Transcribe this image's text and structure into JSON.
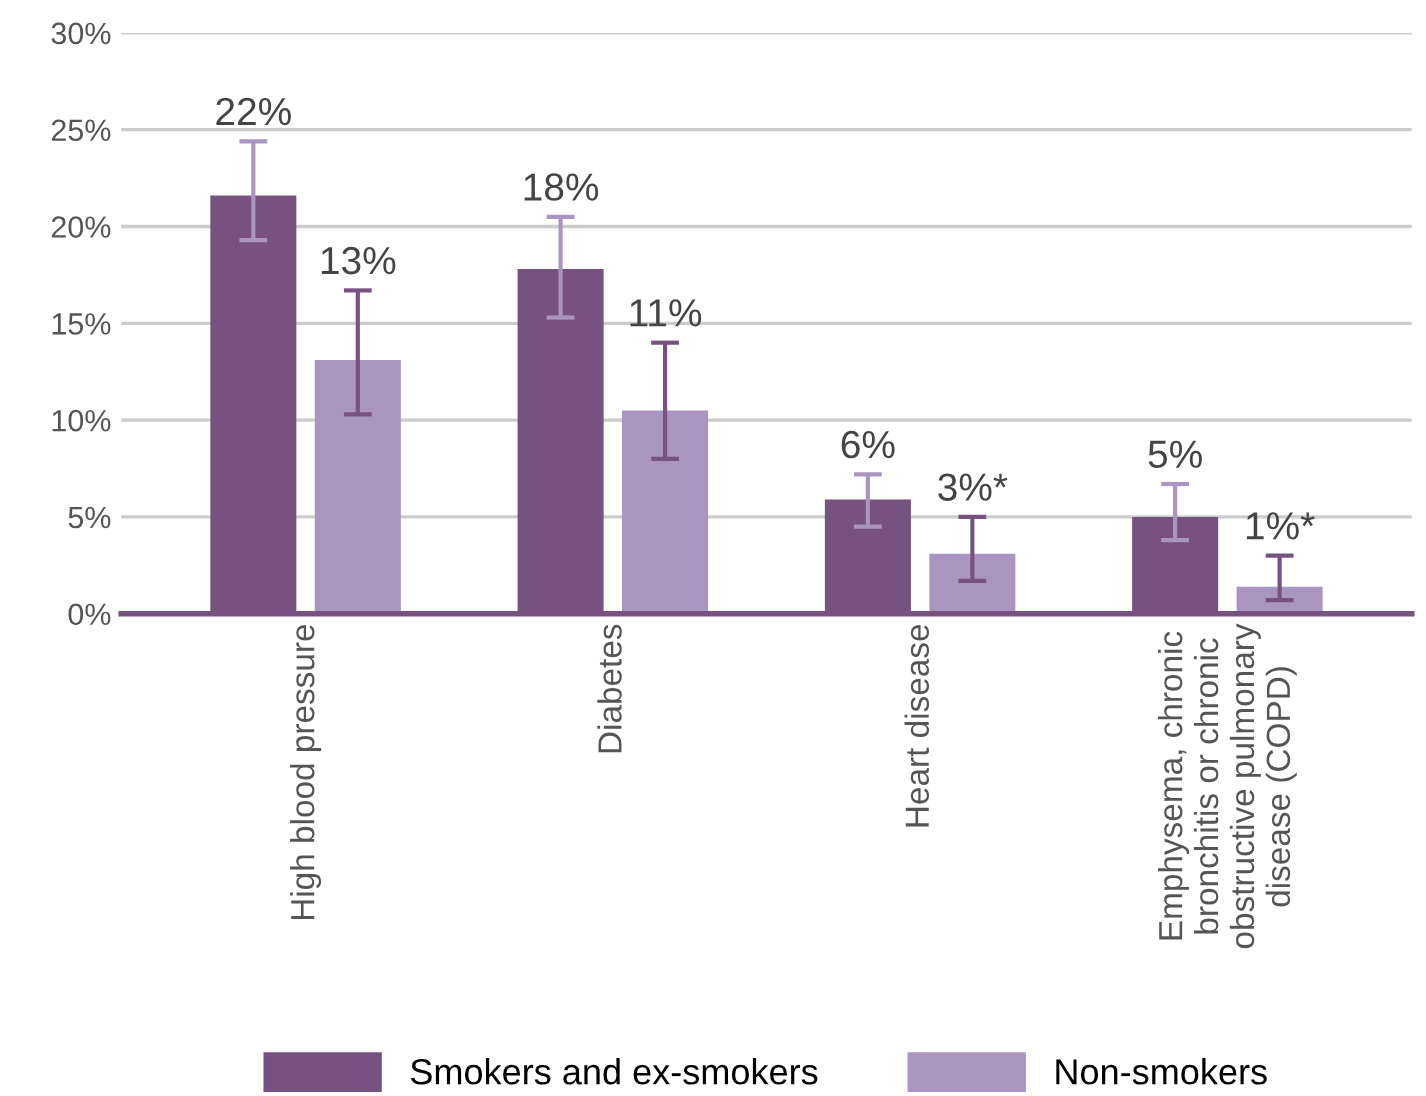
{
  "chart_data": {
    "type": "bar",
    "categories": [
      "High blood pressure",
      "Diabetes",
      "Heart disease",
      "Emphysema, chronic\nbronchitis or chronic\nobstructive pulmonary\ndisease (COPD)"
    ],
    "series": [
      {
        "name": "Smokers and ex-smokers",
        "color": "#77517f",
        "values": [
          21.6,
          17.8,
          5.9,
          5.0
        ],
        "errors": [
          [
            19.3,
            24.4
          ],
          [
            15.3,
            20.5
          ],
          [
            4.5,
            7.2
          ],
          [
            3.8,
            6.7
          ]
        ],
        "value_labels": [
          "22%",
          "18%",
          "6%",
          "5%"
        ]
      },
      {
        "name": "Non-smokers",
        "color": "#a995c0",
        "values": [
          13.1,
          10.5,
          3.1,
          1.4
        ],
        "errors": [
          [
            10.3,
            16.7
          ],
          [
            8.0,
            14.0
          ],
          [
            1.7,
            5.0
          ],
          [
            0.7,
            3.0
          ]
        ],
        "value_labels": [
          "13%",
          "11%",
          "3%*",
          "1%*"
        ]
      }
    ],
    "ylim": [
      0,
      30
    ],
    "yticks": [
      {
        "value": 0,
        "label": "0%"
      },
      {
        "value": 5,
        "label": "5%"
      },
      {
        "value": 10,
        "label": "10%"
      },
      {
        "value": 15,
        "label": "15%"
      },
      {
        "value": 20,
        "label": "20%"
      },
      {
        "value": 25,
        "label": "25%"
      },
      {
        "value": 30,
        "label": "30%"
      }
    ],
    "grid": "y",
    "legend": "bottom"
  }
}
